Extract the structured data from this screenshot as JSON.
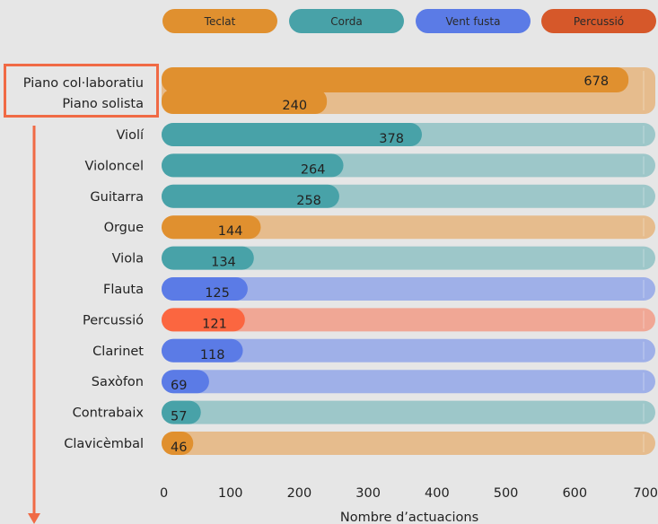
{
  "chart_data": {
    "type": "bar",
    "orientation": "horizontal",
    "xlabel": "Nombre d’actuacions",
    "xlim": [
      0,
      700
    ],
    "xticks": [
      0,
      100,
      200,
      300,
      400,
      500,
      600,
      700
    ],
    "legend": {
      "placement": "top",
      "entries": [
        {
          "name": "Teclat",
          "color": "#e0902f"
        },
        {
          "name": "Corda",
          "color": "#48a2a8"
        },
        {
          "name": "Vent fusta",
          "color": "#5b7be6"
        },
        {
          "name": "Percussió",
          "color": "#d6582a"
        }
      ]
    },
    "track_colors": {
      "Teclat": "#e6bc8d",
      "Corda": "#9dc7c9",
      "Vent fusta": "#9fb0e8",
      "Percussió": "#f0a795"
    },
    "bar_colors": {
      "Teclat": "#e0902f",
      "Corda": "#48a2a8",
      "Vent fusta": "#5b7be6",
      "Percussió": "#fb6640"
    },
    "grouped_bar": {
      "labels": [
        "Piano col·laboratiu",
        "Piano solista"
      ],
      "values": [
        678,
        240
      ],
      "family": "Teclat",
      "highlight_color": "#f06a45"
    },
    "categories": [
      "Violí",
      "Violoncel",
      "Guitarra",
      "Orgue",
      "Viola",
      "Flauta",
      "Percussió",
      "Clarinet",
      "Saxòfon",
      "Contrabaix",
      "Clavicèmbal"
    ],
    "values": [
      378,
      264,
      258,
      144,
      134,
      125,
      121,
      118,
      69,
      57,
      46
    ],
    "families": [
      "Corda",
      "Corda",
      "Corda",
      "Teclat",
      "Corda",
      "Vent fusta",
      "Percussió",
      "Vent fusta",
      "Vent fusta",
      "Corda",
      "Teclat"
    ]
  }
}
